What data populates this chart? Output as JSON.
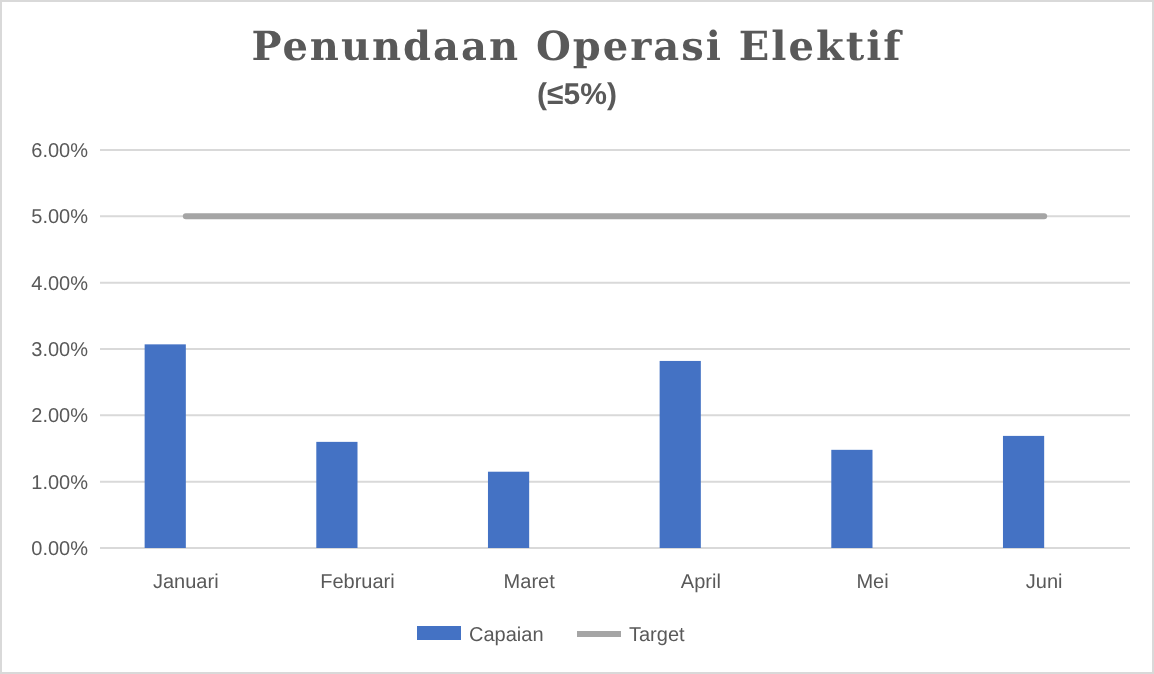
{
  "chart_data": {
    "type": "bar",
    "title": "Penundaan Operasi Elektif",
    "subtitle": "(≤5%)",
    "categories": [
      "Januari",
      "Februari",
      "Maret",
      "April",
      "Mei",
      "Juni"
    ],
    "series": [
      {
        "name": "Capaian",
        "color": "#4472c4",
        "values": [
          3.07,
          1.6,
          1.15,
          2.82,
          1.48,
          1.69
        ]
      },
      {
        "name": "Target",
        "type": "line",
        "color": "#a5a5a5",
        "values": [
          5,
          5,
          5,
          5,
          5,
          5
        ]
      }
    ],
    "ylim": [
      0,
      6
    ],
    "yticks": [
      {
        "value": 0,
        "label": "0.00%"
      },
      {
        "value": 1,
        "label": "1.00%"
      },
      {
        "value": 2,
        "label": "2.00%"
      },
      {
        "value": 3,
        "label": "3.00%"
      },
      {
        "value": 4,
        "label": "4.00%"
      },
      {
        "value": 5,
        "label": "5.00%"
      },
      {
        "value": 6,
        "label": "6.00%"
      }
    ],
    "grid": "y",
    "legend": "bottom",
    "marker": "none",
    "line_style": "solid"
  }
}
